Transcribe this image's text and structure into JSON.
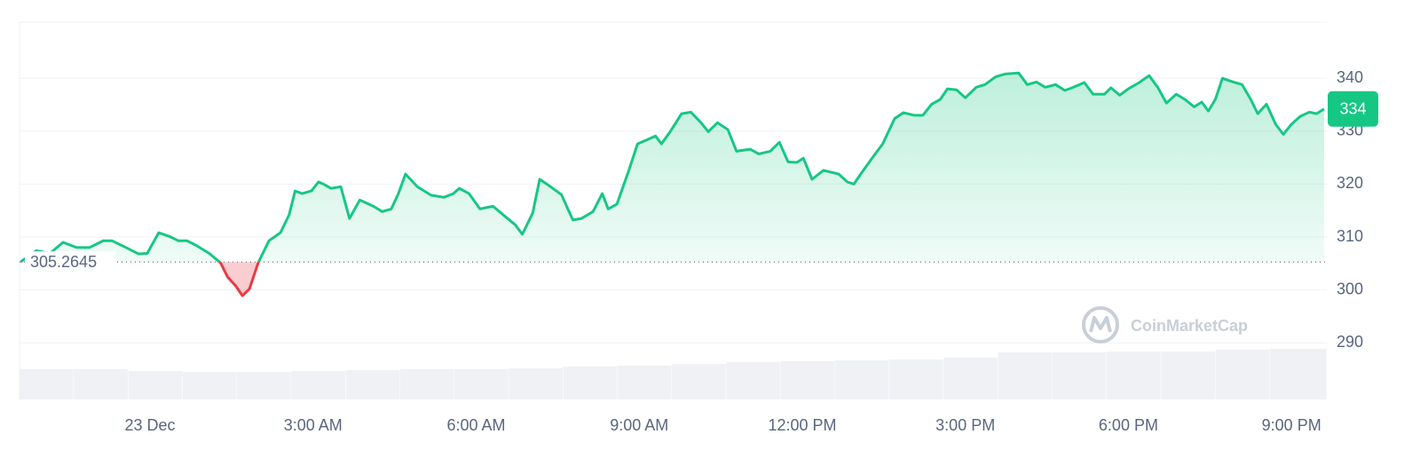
{
  "chart_data": {
    "type": "line",
    "x": [
      -2.38,
      -2.09,
      -1.84,
      -1.6,
      -1.35,
      -1.11,
      -0.86,
      -0.7,
      -0.46,
      -0.21,
      -0.05,
      0.16,
      0.36,
      0.52,
      0.68,
      0.85,
      1.09,
      1.3,
      1.43,
      1.58,
      1.7,
      1.83,
      1.99,
      2.19,
      2.4,
      2.56,
      2.67,
      2.8,
      2.97,
      3.1,
      3.21,
      3.33,
      3.51,
      3.67,
      3.86,
      4.11,
      4.27,
      4.44,
      4.57,
      4.7,
      4.92,
      5.17,
      5.41,
      5.58,
      5.69,
      5.87,
      6.07,
      6.31,
      6.52,
      6.72,
      6.85,
      7.04,
      7.17,
      7.37,
      7.57,
      7.78,
      7.94,
      8.15,
      8.32,
      8.43,
      8.59,
      8.81,
      8.97,
      9.13,
      9.3,
      9.41,
      9.57,
      9.78,
      9.95,
      10.14,
      10.27,
      10.44,
      10.63,
      10.79,
      11.04,
      11.2,
      11.41,
      11.58,
      11.74,
      11.9,
      12.02,
      12.18,
      12.39,
      12.67,
      12.83,
      12.95,
      13.11,
      13.32,
      13.48,
      13.7,
      13.86,
      14.06,
      14.22,
      14.38,
      14.54,
      14.67,
      14.84,
      15.0,
      15.2,
      15.36,
      15.56,
      15.73,
      15.98,
      16.14,
      16.31,
      16.47,
      16.66,
      16.83,
      16.99,
      17.19,
      17.35,
      17.56,
      17.68,
      17.84,
      18.0,
      18.2,
      18.38,
      18.54,
      18.7,
      18.88,
      19.04,
      19.21,
      19.35,
      19.47,
      19.6,
      19.73,
      19.93,
      20.09,
      20.25,
      20.38,
      20.54,
      20.71,
      20.85,
      21.0,
      21.16,
      21.33,
      21.46,
      21.6
    ],
    "series": [
      {
        "color": "#16c784",
        "below_color": "#ea3943",
        "values": [
          305.3,
          307.4,
          306.9,
          309.0,
          308.0,
          308.0,
          309.3,
          309.3,
          308.1,
          306.8,
          306.9,
          310.8,
          310.1,
          309.3,
          309.3,
          308.4,
          306.9,
          305.1,
          302.4,
          300.7,
          298.9,
          300.2,
          305.1,
          309.3,
          310.8,
          314.2,
          318.7,
          318.2,
          318.7,
          320.4,
          319.9,
          319.2,
          319.5,
          313.5,
          317.0,
          315.8,
          314.8,
          315.3,
          318.2,
          321.9,
          319.5,
          317.9,
          317.5,
          318.2,
          319.2,
          318.2,
          315.3,
          315.8,
          314.0,
          312.3,
          310.5,
          314.5,
          320.9,
          319.5,
          318.0,
          313.2,
          313.5,
          314.8,
          318.2,
          315.3,
          316.2,
          322.6,
          327.6,
          328.3,
          329.1,
          327.6,
          329.9,
          333.3,
          333.6,
          331.6,
          329.9,
          331.6,
          330.3,
          326.2,
          326.6,
          325.7,
          326.2,
          327.9,
          324.2,
          324.1,
          324.9,
          320.9,
          322.6,
          321.9,
          320.4,
          320.0,
          322.4,
          325.4,
          327.6,
          332.4,
          333.5,
          333.0,
          333.0,
          335.1,
          336.0,
          338.0,
          337.8,
          336.3,
          338.3,
          338.8,
          340.3,
          340.8,
          341.0,
          338.8,
          339.3,
          338.3,
          338.8,
          337.7,
          338.3,
          339.2,
          337.0,
          337.0,
          338.2,
          336.8,
          338.0,
          339.2,
          340.5,
          338.3,
          335.3,
          337.0,
          336.0,
          334.6,
          335.5,
          333.8,
          336.0,
          340.0,
          339.3,
          338.8,
          336.0,
          333.3,
          335.1,
          331.3,
          329.4,
          331.3,
          332.8,
          333.6,
          333.3,
          334.2
        ]
      }
    ],
    "baseline": 305.2645,
    "price_tag": "334",
    "xlim": [
      -2.4,
      21.65
    ],
    "xticks": [
      {
        "value": 0,
        "label": "23 Dec"
      },
      {
        "value": 3,
        "label": "3:00 AM"
      },
      {
        "value": 6,
        "label": "6:00 AM"
      },
      {
        "value": 9,
        "label": "9:00 AM"
      },
      {
        "value": 12,
        "label": "12:00 PM"
      },
      {
        "value": 15,
        "label": "3:00 PM"
      },
      {
        "value": 18,
        "label": "6:00 PM"
      },
      {
        "value": 21,
        "label": "9:00 PM"
      }
    ],
    "ylim": [
      279.3,
      350.6
    ],
    "yticks": [
      290,
      300,
      310,
      320,
      330,
      340
    ],
    "grid": true,
    "volume": {
      "color": "#eff1f5",
      "x": [
        -2.4,
        -1.4,
        -0.4,
        0.6,
        1.6,
        2.6,
        3.6,
        4.6,
        5.6,
        6.6,
        7.6,
        8.6,
        9.6,
        10.6,
        11.6,
        12.6,
        13.6,
        14.6,
        15.6,
        16.6,
        17.6,
        18.6,
        19.6,
        20.6
      ],
      "values": [
        34,
        34,
        32,
        31,
        31,
        32,
        33,
        34,
        34,
        35,
        37,
        38,
        40,
        42,
        43,
        44,
        45,
        47,
        53,
        53,
        54,
        54,
        56,
        57
      ],
      "ylim": [
        0,
        425
      ]
    },
    "watermark": "CoinMarketCap"
  }
}
